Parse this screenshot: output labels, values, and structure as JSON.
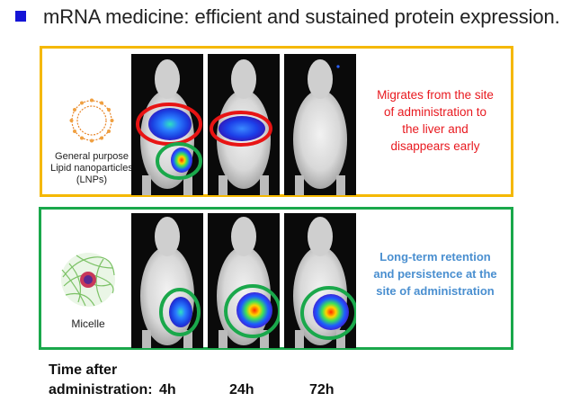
{
  "header": {
    "title": "mRNA medicine: efficient and sustained protein expression.",
    "bullet_color": "#1414d6"
  },
  "lnp_panel": {
    "border_color": "#f5b800",
    "caption": [
      "General purpose",
      "Lipid nanoparticles",
      "(LNPs)"
    ],
    "description": [
      "Migrates from the site",
      "of administration to",
      "the liver and",
      "disappears early"
    ],
    "description_color": "#e8191f",
    "icon": "lipid-nanoparticle-icon"
  },
  "micelle_panel": {
    "border_color": "#1aa84b",
    "caption": "Micelle",
    "description": [
      "Long-term retention",
      "and persistence at the",
      "site of administration"
    ],
    "description_color": "#4a8fd0",
    "icon": "micelle-icon"
  },
  "timeline": {
    "label_line1": "Time after",
    "label_line2": "administration:",
    "times": [
      "4h",
      "24h",
      "72h"
    ]
  }
}
